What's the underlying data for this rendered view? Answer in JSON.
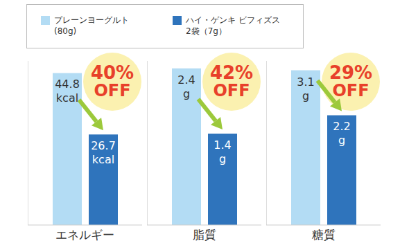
{
  "chart_data": [
    {
      "type": "bar",
      "categories": [
        "エネルギー"
      ],
      "ylim": [
        0,
        50
      ],
      "yticks": [
        0,
        50
      ],
      "tick_labels": "x",
      "data_labels": true,
      "legend": "top",
      "annotations": [
        "40% OFF"
      ],
      "series": [
        {
          "name": "プレーンヨーグルト (80g)",
          "color": "#b3dcf4",
          "values": [
            44.8
          ],
          "value_labels": [
            "44.8 kcal"
          ]
        },
        {
          "name": "ハイ・ゲンキ ビフィズス 2袋（7g）",
          "color": "#2f74bc",
          "values": [
            26.7
          ],
          "value_labels": [
            "26.7 kcal"
          ]
        }
      ]
    },
    {
      "type": "bar",
      "categories": [
        "脂質"
      ],
      "ylim": [
        0,
        2.6
      ],
      "yticks": [
        0,
        2.6
      ],
      "tick_labels": "x",
      "data_labels": true,
      "annotations": [
        "42% OFF"
      ],
      "series": [
        {
          "name": "プレーンヨーグルト (80g)",
          "color": "#b3dcf4",
          "values": [
            2.4
          ],
          "value_labels": [
            "2.4 g"
          ]
        },
        {
          "name": "ハイ・ゲンキ ビフィズス 2袋（7g）",
          "color": "#2f74bc",
          "values": [
            1.4
          ],
          "value_labels": [
            "1.4 g"
          ]
        }
      ]
    },
    {
      "type": "bar",
      "categories": [
        "糖質"
      ],
      "ylim": [
        0,
        3.4
      ],
      "yticks": [
        0,
        3.4
      ],
      "tick_labels": "x",
      "data_labels": true,
      "annotations": [
        "29% OFF"
      ],
      "series": [
        {
          "name": "プレーンヨーグルト (80g)",
          "color": "#b3dcf4",
          "values": [
            3.1
          ],
          "value_labels": [
            "3.1 g"
          ]
        },
        {
          "name": "ハイ・ゲンキ ビフィズス 2袋（7g）",
          "color": "#2f74bc",
          "values": [
            2.2
          ],
          "value_labels": [
            "2.2 g"
          ]
        }
      ]
    }
  ]
}
